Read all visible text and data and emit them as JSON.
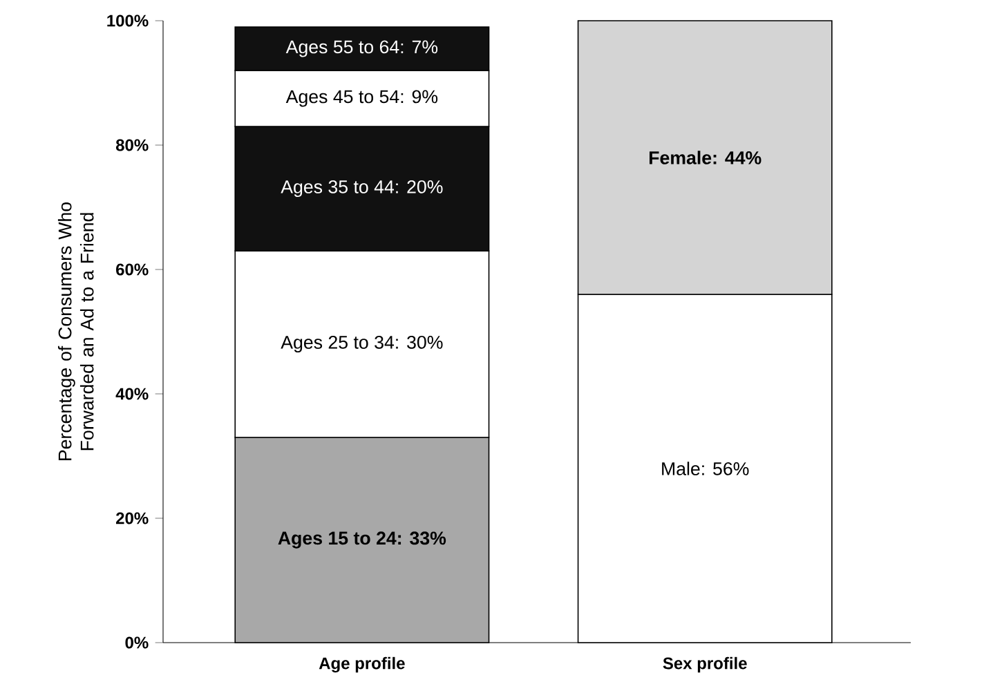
{
  "chart_data": {
    "type": "bar",
    "stacked": true,
    "ylabel": "Percentage of Consumers Who Forwarded an Ad to a Friend",
    "categories": [
      "Age profile",
      "Sex profile"
    ],
    "series": [
      {
        "colors": [
          "#a8a8a8",
          "#ffffff"
        ],
        "values": [
          33,
          56
        ],
        "value_labels": [
          "Ages 15 to 24: 33%",
          "Male: 56%"
        ]
      },
      {
        "colors": [
          "#ffffff",
          "#d4d4d4"
        ],
        "values": [
          30,
          44
        ],
        "value_labels": [
          "Ages 25 to 34: 30%",
          "Female: 44%"
        ]
      },
      {
        "colors": [
          "#111111",
          null
        ],
        "values": [
          20,
          null
        ],
        "value_labels": [
          "Ages 35 to 44: 20%",
          null
        ]
      },
      {
        "colors": [
          "#ffffff",
          null
        ],
        "values": [
          9,
          null
        ],
        "value_labels": [
          "Ages 45 to 54: 9%",
          null
        ]
      },
      {
        "colors": [
          "#111111",
          null
        ],
        "values": [
          7,
          null
        ],
        "value_labels": [
          "Ages 55 to 64: 7%",
          null
        ]
      }
    ],
    "ylim": [
      0,
      100
    ],
    "yticks": [
      {
        "value": 0,
        "label": "0%"
      },
      {
        "value": 20,
        "label": "20%"
      },
      {
        "value": 40,
        "label": "40%"
      },
      {
        "value": 60,
        "label": "60%"
      },
      {
        "value": 80,
        "label": "80%"
      },
      {
        "value": 100,
        "label": "100%"
      }
    ],
    "grid": false
  }
}
